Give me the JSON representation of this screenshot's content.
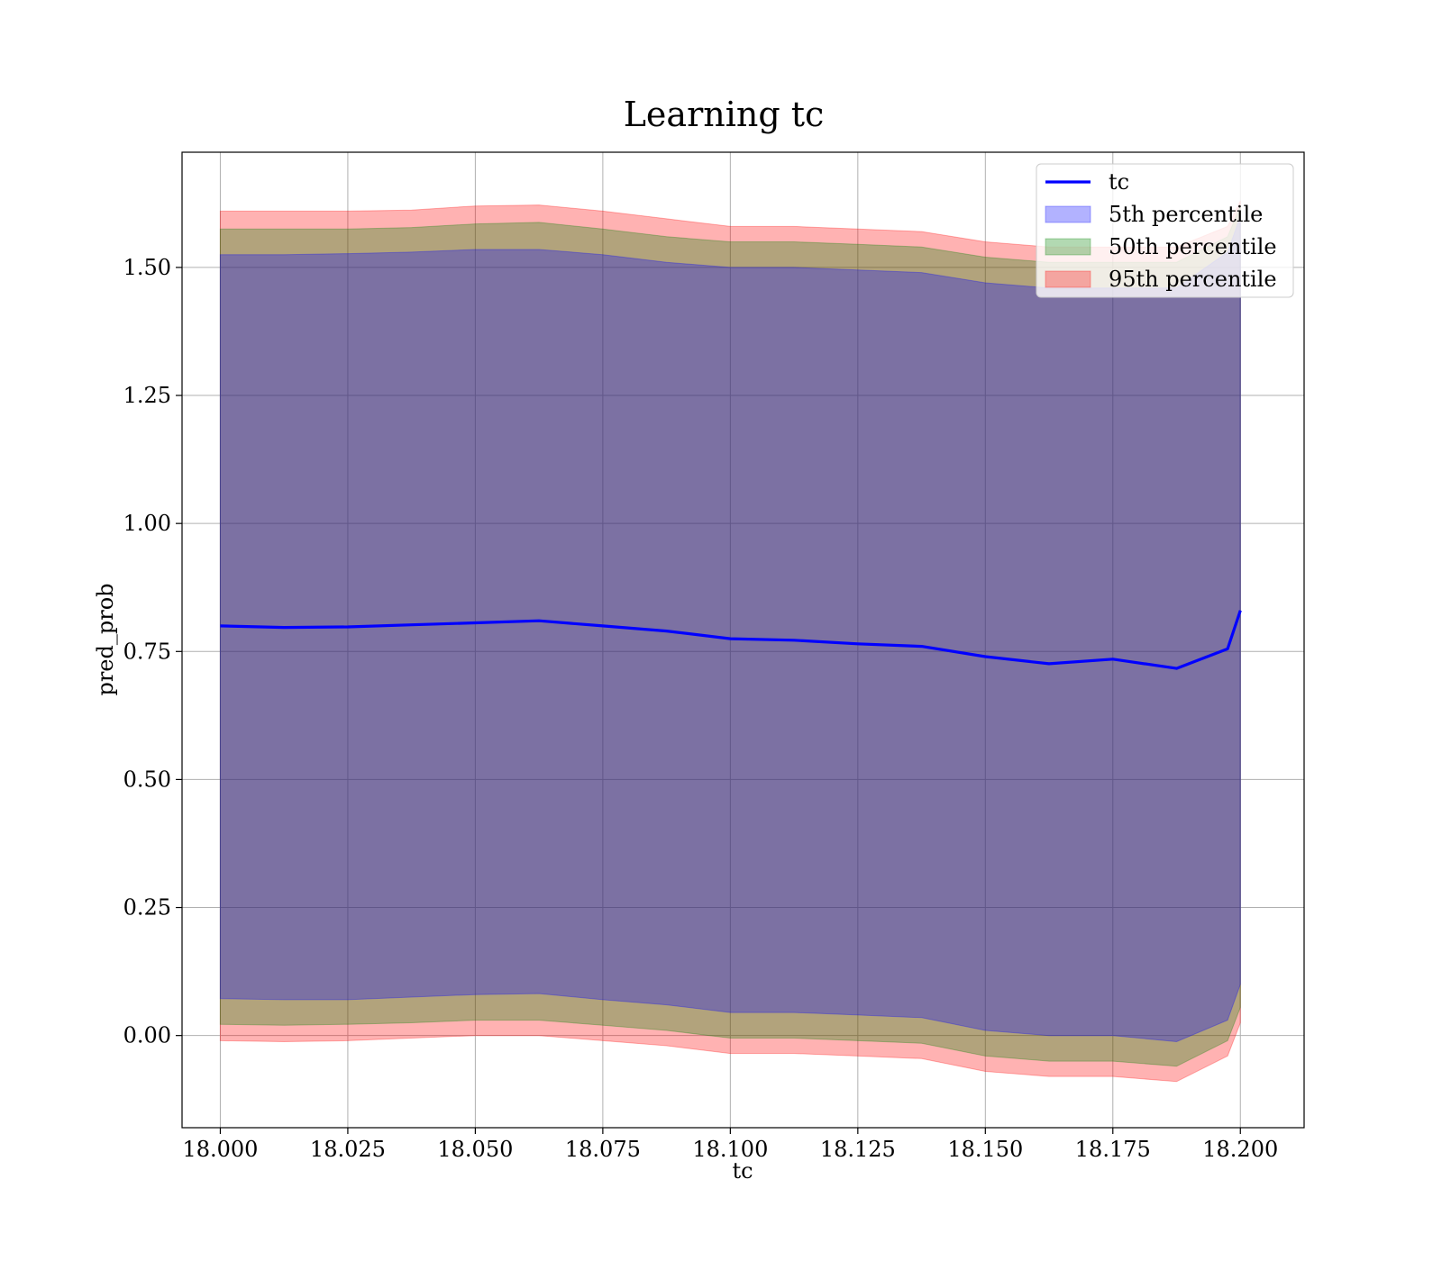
{
  "chart_data": {
    "type": "area",
    "title": "Learning tc",
    "xlabel": "tc",
    "ylabel": "pred_prob",
    "xlim": [
      17.9925,
      18.2125
    ],
    "ylim": [
      -0.18,
      1.725
    ],
    "xticks": [
      "18.000",
      "18.025",
      "18.050",
      "18.075",
      "18.100",
      "18.125",
      "18.150",
      "18.175",
      "18.200"
    ],
    "yticks": [
      "0.00",
      "0.25",
      "0.50",
      "0.75",
      "1.00",
      "1.25",
      "1.50"
    ],
    "grid": true,
    "legend_position": "top-right",
    "legend": [
      "tc",
      "5th percentile",
      "50th percentile",
      "95th percentile"
    ],
    "colors": {
      "line": "#0000ff",
      "band_5th": "#0000ff",
      "band_50th": "#008000",
      "band_95th": "#ff0000"
    },
    "x": [
      18.0,
      18.0125,
      18.025,
      18.0375,
      18.05,
      18.0625,
      18.075,
      18.0875,
      18.1,
      18.1125,
      18.125,
      18.1375,
      18.15,
      18.1625,
      18.175,
      18.1875,
      18.1975,
      18.2
    ],
    "series": [
      {
        "name": "tc",
        "values": [
          0.8,
          0.797,
          0.798,
          0.802,
          0.806,
          0.81,
          0.8,
          0.79,
          0.775,
          0.772,
          0.765,
          0.76,
          0.74,
          0.726,
          0.735,
          0.717,
          0.755,
          0.83
        ]
      }
    ],
    "bands": [
      {
        "name": "5th percentile",
        "upper": [
          1.525,
          1.525,
          1.527,
          1.53,
          1.535,
          1.535,
          1.525,
          1.51,
          1.5,
          1.5,
          1.495,
          1.49,
          1.47,
          1.46,
          1.46,
          1.46,
          1.53,
          1.6
        ],
        "lower": [
          0.072,
          0.07,
          0.07,
          0.075,
          0.08,
          0.082,
          0.07,
          0.06,
          0.045,
          0.045,
          0.04,
          0.035,
          0.01,
          0.0,
          0.0,
          -0.012,
          0.03,
          0.1
        ]
      },
      {
        "name": "50th percentile",
        "upper": [
          1.575,
          1.575,
          1.575,
          1.578,
          1.585,
          1.588,
          1.575,
          1.56,
          1.55,
          1.55,
          1.545,
          1.54,
          1.52,
          1.51,
          1.51,
          1.51,
          1.56,
          1.62
        ],
        "lower": [
          0.022,
          0.02,
          0.022,
          0.025,
          0.03,
          0.03,
          0.02,
          0.01,
          -0.005,
          -0.005,
          -0.01,
          -0.015,
          -0.04,
          -0.05,
          -0.05,
          -0.06,
          -0.01,
          0.055
        ]
      },
      {
        "name": "95th percentile",
        "upper": [
          1.61,
          1.61,
          1.61,
          1.612,
          1.62,
          1.622,
          1.61,
          1.595,
          1.58,
          1.58,
          1.575,
          1.57,
          1.55,
          1.54,
          1.54,
          1.54,
          1.58,
          1.63
        ],
        "lower": [
          -0.01,
          -0.012,
          -0.01,
          -0.005,
          0.0,
          0.0,
          -0.01,
          -0.02,
          -0.035,
          -0.035,
          -0.04,
          -0.045,
          -0.07,
          -0.08,
          -0.08,
          -0.09,
          -0.04,
          0.025
        ]
      }
    ]
  }
}
